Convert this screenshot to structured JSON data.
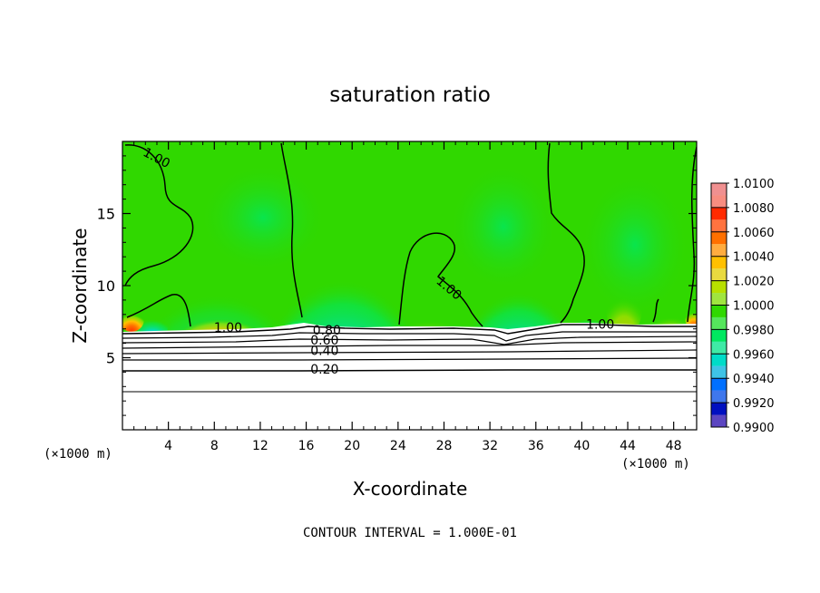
{
  "chart_data": {
    "type": "heatmap",
    "title": "saturation ratio",
    "xlabel": "X-coordinate",
    "ylabel": "Z-coordinate",
    "x_unit_left": "(×1000 m)",
    "x_unit_right": "(×1000 m)",
    "xlim": [
      0,
      50
    ],
    "ylim": [
      0,
      20
    ],
    "x_ticks": [
      4,
      8,
      12,
      16,
      20,
      24,
      28,
      32,
      36,
      40,
      44,
      48
    ],
    "y_ticks": [
      5,
      10,
      15
    ],
    "footer": "CONTOUR INTERVAL = 1.000E-01",
    "colorbar": {
      "levels": [
        "1.0100",
        "1.0080",
        "1.0060",
        "1.0040",
        "1.0020",
        "1.0000",
        "0.9980",
        "0.9960",
        "0.9940",
        "0.9920",
        "0.9900"
      ],
      "colors": [
        "#f09090",
        "#ff2a00",
        "#ff7000",
        "#ffc000",
        "#b8e000",
        "#30d800",
        "#00e860",
        "#00dcc8",
        "#0070ff",
        "#0010c0",
        "#600090"
      ]
    },
    "contour_labels": [
      {
        "text": "1.00",
        "x": 2.8,
        "y": 18.6,
        "rot": 28
      },
      {
        "text": "1.00",
        "x": 28.2,
        "y": 9.6,
        "rot": 40
      },
      {
        "text": "1.00",
        "x": 9.2,
        "y": 6.8,
        "rot": 0
      },
      {
        "text": "1.00",
        "x": 41.6,
        "y": 7.0,
        "rot": 0
      },
      {
        "text": "0.80",
        "x": 17.8,
        "y": 6.6,
        "rot": 0
      },
      {
        "text": "0.60",
        "x": 17.6,
        "y": 5.9,
        "rot": 0
      },
      {
        "text": "0.40",
        "x": 17.6,
        "y": 5.2,
        "rot": 0
      },
      {
        "text": "0.20",
        "x": 17.6,
        "y": 3.9,
        "rot": 0
      }
    ]
  }
}
